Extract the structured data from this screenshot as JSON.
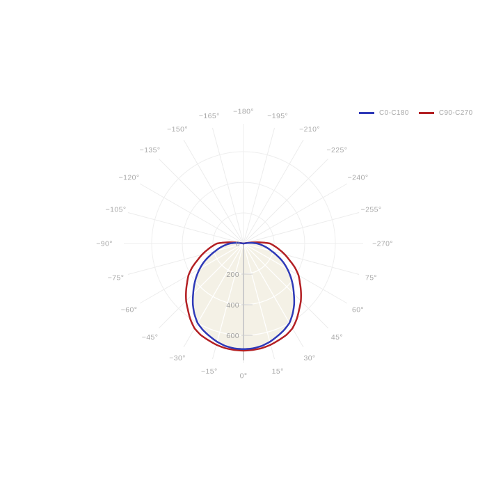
{
  "chart_data": {
    "type": "line",
    "subtype": "polar-photometric",
    "title": "",
    "orientation": "0-degrees-at-bottom",
    "radial_axis": {
      "origin_label": "0",
      "tick_values": [
        200,
        400,
        600
      ],
      "tick_labels": [
        "200",
        "400",
        "600"
      ],
      "max_value": 780,
      "grid_ring_values": [
        200,
        400,
        600
      ]
    },
    "angle_grid_step_deg": 15,
    "angle_labels": [
      {
        "angle": 0,
        "text": "0°"
      },
      {
        "angle": 15,
        "text": "15°"
      },
      {
        "angle": 30,
        "text": "30°"
      },
      {
        "angle": 45,
        "text": "45°"
      },
      {
        "angle": 60,
        "text": "60°"
      },
      {
        "angle": 75,
        "text": "75°"
      },
      {
        "angle": 90,
        "text": "−270°"
      },
      {
        "angle": 105,
        "text": "−255°"
      },
      {
        "angle": 120,
        "text": "−240°"
      },
      {
        "angle": 135,
        "text": "−225°"
      },
      {
        "angle": 150,
        "text": "−210°"
      },
      {
        "angle": 165,
        "text": "−195°"
      },
      {
        "angle": 180,
        "text": "−180°"
      },
      {
        "angle": -15,
        "text": "−15°"
      },
      {
        "angle": -30,
        "text": "−30°"
      },
      {
        "angle": -45,
        "text": "−45°"
      },
      {
        "angle": -60,
        "text": "−60°"
      },
      {
        "angle": -75,
        "text": "−75°"
      },
      {
        "angle": -90,
        "text": "−90°"
      },
      {
        "angle": -105,
        "text": "−105°"
      },
      {
        "angle": -120,
        "text": "−120°"
      },
      {
        "angle": -135,
        "text": "−135°"
      },
      {
        "angle": -150,
        "text": "−150°"
      },
      {
        "angle": -165,
        "text": "−165°"
      }
    ],
    "series": [
      {
        "name": "C0-C180",
        "color": "#2f3ab8",
        "fill_color": "#f4f1e6",
        "filled": true,
        "angles": [
          -100,
          -95,
          -90,
          -85,
          -80,
          -75,
          -70,
          -65,
          -60,
          -55,
          -50,
          -45,
          -40,
          -35,
          -30,
          -25,
          -20,
          -15,
          -10,
          -5,
          0,
          5,
          10,
          15,
          20,
          25,
          30,
          35,
          40,
          45,
          50,
          55,
          60,
          65,
          70,
          75,
          80,
          85,
          90,
          95,
          100
        ],
        "values": [
          0,
          45,
          90,
          120,
          155,
          190,
          235,
          285,
          330,
          375,
          420,
          465,
          515,
          560,
          600,
          625,
          645,
          665,
          680,
          688,
          690,
          688,
          680,
          665,
          645,
          625,
          600,
          560,
          515,
          465,
          420,
          375,
          330,
          285,
          235,
          190,
          155,
          120,
          90,
          45,
          0
        ]
      },
      {
        "name": "C90-C270",
        "color": "#b32024",
        "fill_color": "none",
        "filled": false,
        "angles": [
          -100,
          -95,
          -90,
          -85,
          -80,
          -75,
          -70,
          -65,
          -60,
          -55,
          -50,
          -45,
          -40,
          -35,
          -30,
          -25,
          -20,
          -15,
          -10,
          -5,
          0,
          5,
          10,
          15,
          20,
          25,
          30,
          35,
          40,
          45,
          50,
          55,
          60,
          65,
          70,
          75,
          80,
          85,
          90,
          95,
          100
        ],
        "values": [
          0,
          90,
          173,
          205,
          240,
          280,
          320,
          370,
          415,
          450,
          490,
          530,
          565,
          605,
          640,
          660,
          672,
          685,
          694,
          698,
          700,
          698,
          694,
          685,
          672,
          660,
          640,
          605,
          565,
          530,
          490,
          450,
          415,
          370,
          320,
          280,
          240,
          205,
          173,
          90,
          0
        ]
      }
    ],
    "legend": {
      "position": "top-right",
      "items": [
        {
          "label": "C0-C180",
          "color": "#2f3ab8"
        },
        {
          "label": "C90-C270",
          "color": "#b32024"
        }
      ]
    },
    "colors": {
      "background": "#ffffff",
      "grid_line": "#ececec",
      "grid_ring": "#eeeeee",
      "inner_grid": "#ffffff",
      "axis_line": "#cccccc",
      "tick_label": "#a0a0a0",
      "angle_label": "#a8a8a8",
      "legend_text": "#a8a8a8"
    }
  }
}
